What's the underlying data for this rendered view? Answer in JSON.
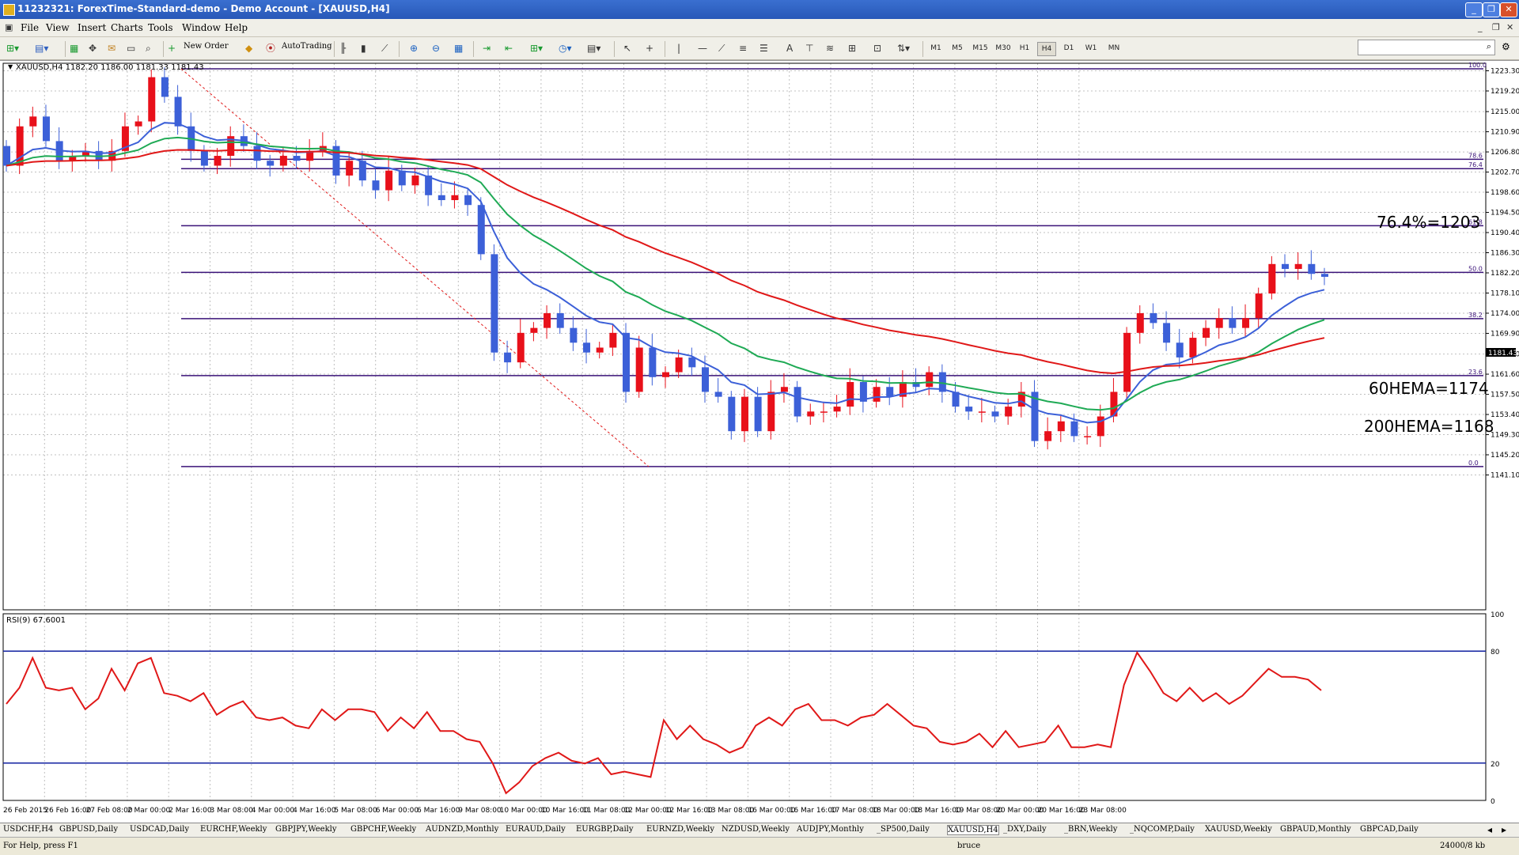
{
  "window": {
    "title": "11232321: ForexTime-Standard-demo - Demo Account - [XAUUSD,H4]"
  },
  "menu": [
    "File",
    "View",
    "Insert",
    "Charts",
    "Tools",
    "Window",
    "Help"
  ],
  "toolbar": {
    "new_order": "New Order",
    "autotrading": "AutoTrading",
    "timeframes": [
      "M1",
      "M5",
      "M15",
      "M30",
      "H1",
      "H4",
      "D1",
      "W1",
      "MN"
    ],
    "active_timeframe": "H4"
  },
  "chart": {
    "header": "XAUUSD,H4  1182.20 1186.00 1181.33 1181.43",
    "current_price": "1181.43",
    "price_axis": [
      "1223.30",
      "1219.20",
      "1215.00",
      "1210.90",
      "1206.80",
      "1202.70",
      "1198.60",
      "1194.50",
      "1190.40",
      "1186.30",
      "1182.20",
      "1178.10",
      "1174.00",
      "1169.90",
      "1165.70",
      "1161.60",
      "1157.50",
      "1153.40",
      "1149.30",
      "1145.20",
      "1141.10"
    ],
    "fib_levels": [
      {
        "label": "100.0",
        "price": 1223.7
      },
      {
        "label": "78.6",
        "price": 1205.3
      },
      {
        "label": "76.4",
        "price": 1203.4
      },
      {
        "label": "61.8",
        "price": 1191.8
      },
      {
        "label": "50.0",
        "price": 1182.3
      },
      {
        "label": "38.2",
        "price": 1172.9
      },
      {
        "label": "23.6",
        "price": 1161.3
      },
      {
        "label": "0.0",
        "price": 1142.8
      }
    ],
    "annotations": [
      "76.4%=1203",
      "60HEMA=1174",
      "200HEMA=1168"
    ],
    "time_axis": [
      "26 Feb 2015",
      "26 Feb 16:00",
      "27 Feb 08:00",
      "2 Mar 00:00",
      "2 Mar 16:00",
      "3 Mar 08:00",
      "4 Mar 00:00",
      "4 Mar 16:00",
      "5 Mar 08:00",
      "6 Mar 00:00",
      "6 Mar 16:00",
      "9 Mar 08:00",
      "10 Mar 00:00",
      "10 Mar 16:00",
      "11 Mar 08:00",
      "12 Mar 00:00",
      "12 Mar 16:00",
      "13 Mar 08:00",
      "16 Mar 00:00",
      "16 Mar 16:00",
      "17 Mar 08:00",
      "18 Mar 00:00",
      "18 Mar 16:00",
      "19 Mar 08:00",
      "20 Mar 00:00",
      "20 Mar 16:00",
      "23 Mar 08:00"
    ],
    "colors": {
      "bull": "#e8101a",
      "bear": "#3c60d8",
      "ema_fast": "#3c60d8",
      "ema_mid": "#1faa55",
      "ema_slow": "#e01818",
      "fib": "#3a1278"
    }
  },
  "rsi": {
    "label": "RSI(9) 67.6001",
    "axis": [
      "100",
      "80",
      "20",
      "0"
    ],
    "levels": [
      80,
      20
    ]
  },
  "symbol_tabs": [
    "USDCHF,H4",
    "GBPUSD,Daily",
    "USDCAD,Daily",
    "EURCHF,Weekly",
    "GBPJPY,Weekly",
    "GBPCHF,Weekly",
    "AUDNZD,Monthly",
    "EURAUD,Daily",
    "EURGBP,Daily",
    "EURNZD,Weekly",
    "NZDUSD,Weekly",
    "AUDJPY,Monthly",
    "_SP500,Daily",
    "XAUUSD,H4",
    "_DXY,Daily",
    "_BRN,Weekly",
    "_NQCOMP,Daily",
    "XAUUSD,Weekly",
    "GBPAUD,Monthly",
    "GBPCAD,Daily"
  ],
  "status": {
    "help": "For Help, press F1",
    "profile": "bruce",
    "traffic": "24000/8 kb"
  }
}
